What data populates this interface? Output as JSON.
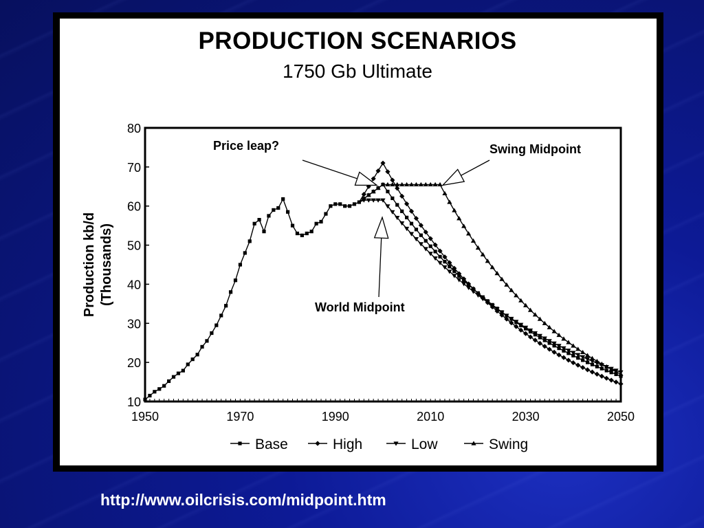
{
  "source_url": "http://www.oilcrisis.com/midpoint.htm",
  "chart_data": {
    "type": "line",
    "title": "PRODUCTION SCENARIOS",
    "subtitle": "1750 Gb Ultimate",
    "ylabel": "Production kb/d",
    "ylabel2": "(Thousands)",
    "xlabel": "",
    "xlim": [
      1950,
      2050
    ],
    "ylim": [
      10,
      80
    ],
    "xticks": [
      1950,
      1970,
      1990,
      2010,
      2030,
      2050
    ],
    "yticks": [
      10,
      20,
      30,
      40,
      50,
      60,
      70,
      80
    ],
    "grid": false,
    "legend_position": "bottom",
    "annotations": [
      {
        "text": "Price leap?",
        "points_to": [
          1999,
          65.5
        ]
      },
      {
        "text": "Swing Midpoint",
        "points_to": [
          2012,
          65.5
        ]
      },
      {
        "text": "World Midpoint",
        "points_to": [
          2000,
          61.5
        ]
      }
    ],
    "history": {
      "x": [
        1950,
        1951,
        1952,
        1953,
        1954,
        1955,
        1956,
        1957,
        1958,
        1959,
        1960,
        1961,
        1962,
        1963,
        1964,
        1965,
        1966,
        1967,
        1968,
        1969,
        1970,
        1971,
        1972,
        1973,
        1974,
        1975,
        1976,
        1977,
        1978,
        1979,
        1980,
        1981,
        1982,
        1983,
        1984,
        1985,
        1986,
        1987,
        1988,
        1989,
        1990,
        1991,
        1992,
        1993,
        1994,
        1995
      ],
      "y": [
        10.5,
        11.5,
        12.5,
        13.2,
        14.0,
        15.2,
        16.3,
        17.2,
        17.9,
        19.5,
        20.8,
        22.0,
        24.0,
        25.5,
        27.5,
        29.5,
        32.0,
        34.5,
        38.0,
        41.0,
        45.0,
        48.0,
        51.0,
        55.5,
        56.5,
        53.5,
        57.5,
        59.0,
        59.5,
        61.8,
        58.5,
        55.0,
        53.0,
        52.5,
        53.0,
        53.5,
        55.5,
        56.0,
        58.0,
        60.0,
        60.5,
        60.5,
        60.0,
        60.0,
        60.5,
        61.0
      ]
    },
    "series": [
      {
        "name": "Base",
        "marker": "square",
        "peak_year": 2000,
        "peak": 65.5,
        "plateau_until": 2000,
        "x_end": 2050,
        "y_end": 16.5
      },
      {
        "name": "High",
        "marker": "diamond",
        "peak_year": 2000,
        "peak": 71.0,
        "plateau_until": 2000,
        "x_end": 2050,
        "y_end": 14.5
      },
      {
        "name": "Low",
        "marker": "triangle-down",
        "peak_year": 1996,
        "peak": 61.5,
        "plateau_until": 2000,
        "x_end": 2050,
        "y_end": 17.5
      },
      {
        "name": "Swing",
        "marker": "triangle-up",
        "peak_year": 2000,
        "peak": 65.5,
        "plateau_until": 2012,
        "x_end": 2050,
        "y_end": 17.0
      }
    ]
  }
}
